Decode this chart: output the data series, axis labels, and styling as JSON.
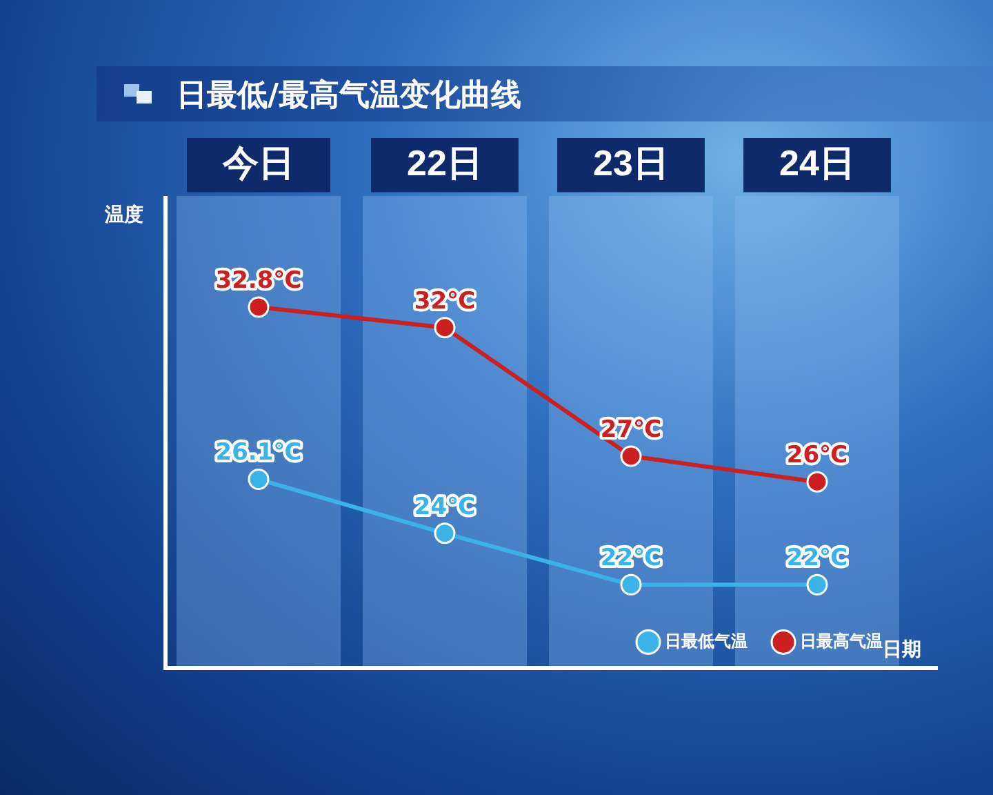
{
  "chart_data": {
    "type": "line",
    "title": "日最低/最高气温变化曲线",
    "xlabel": "日期",
    "ylabel": "温度",
    "categories": [
      "今日",
      "22日",
      "23日",
      "24日"
    ],
    "series": [
      {
        "name": "日最低气温",
        "color": "#3ab4e8",
        "values": [
          26.1,
          24,
          22,
          22
        ],
        "value_labels": [
          "26.1℃",
          "24℃",
          "22℃",
          "22℃"
        ]
      },
      {
        "name": "日最高气温",
        "color": "#cc1f1f",
        "values": [
          32.8,
          32,
          27,
          26
        ],
        "value_labels": [
          "32.8℃",
          "32℃",
          "27℃",
          "26℃"
        ]
      }
    ],
    "data_labels": true,
    "marker": "circle",
    "line_style": "solid",
    "legend": "bottom right",
    "grid": false
  }
}
